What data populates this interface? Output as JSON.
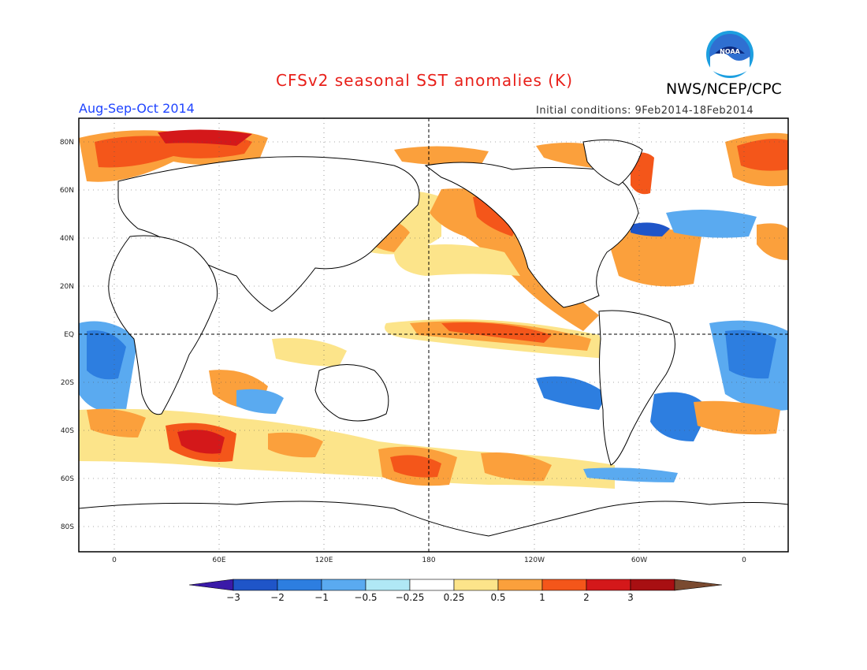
{
  "title": "CFSv2 seasonal SST anomalies (K)",
  "agency": "NWS/NCEP/CPC",
  "logo_text": "NOAA",
  "period": "Aug-Sep-Oct 2014",
  "initial_conditions": "Initial conditions: 9Feb2014-18Feb2014",
  "lat_labels": [
    "80N",
    "60N",
    "40N",
    "20N",
    "EQ",
    "20S",
    "40S",
    "60S",
    "80S"
  ],
  "lon_labels": [
    "0",
    "60E",
    "120E",
    "180",
    "120W",
    "60W",
    "0"
  ],
  "colorbar": {
    "labels": [
      "-3",
      "-2",
      "-1",
      "-0.5",
      "-0.25",
      "0.25",
      "0.5",
      "1",
      "2",
      "3"
    ],
    "colors": [
      "#3a1aa8",
      "#1f55c8",
      "#2d7ee0",
      "#5aaaf0",
      "#b0e8f5",
      "#ffffff",
      "#fce48a",
      "#fba03c",
      "#f4561a",
      "#d4181a",
      "#a80f12",
      "#7a4a30"
    ]
  }
}
